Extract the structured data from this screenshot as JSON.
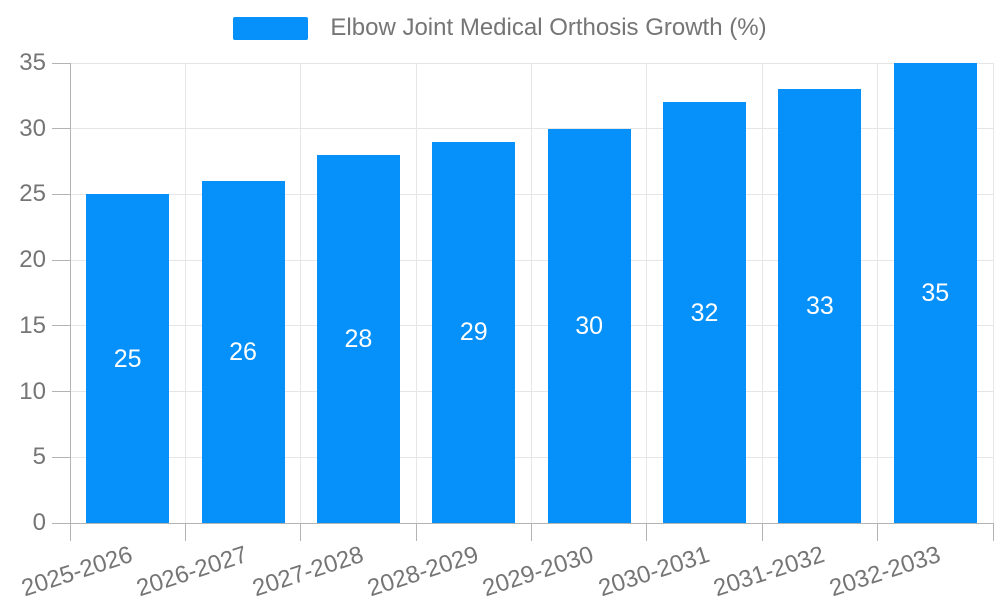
{
  "legend": {
    "label": "Elbow Joint Medical Orthosis Growth (%)"
  },
  "colors": {
    "bar": "#0690fa",
    "grid": "#e6e6e6",
    "axis": "#b3b3b3",
    "tick_text": "#757575",
    "bar_label_text": "#ffffff",
    "background": "#ffffff"
  },
  "chart_data": {
    "type": "bar",
    "title": "Elbow Joint Medical Orthosis Growth (%)",
    "categories": [
      "2025-2026",
      "2026-2027",
      "2027-2028",
      "2028-2029",
      "2029-2030",
      "2030-2031",
      "2031-2032",
      "2032-2033"
    ],
    "values": [
      25,
      26,
      28,
      29,
      30,
      32,
      33,
      35
    ],
    "xlabel": "",
    "ylabel": "",
    "ylim": [
      0,
      35
    ],
    "yticks": [
      0,
      5,
      10,
      15,
      20,
      25,
      30,
      35
    ],
    "grid": "on",
    "legend_position": "top-center",
    "value_label_position": "inside-middle",
    "x_tick_rotation_deg": -18
  }
}
